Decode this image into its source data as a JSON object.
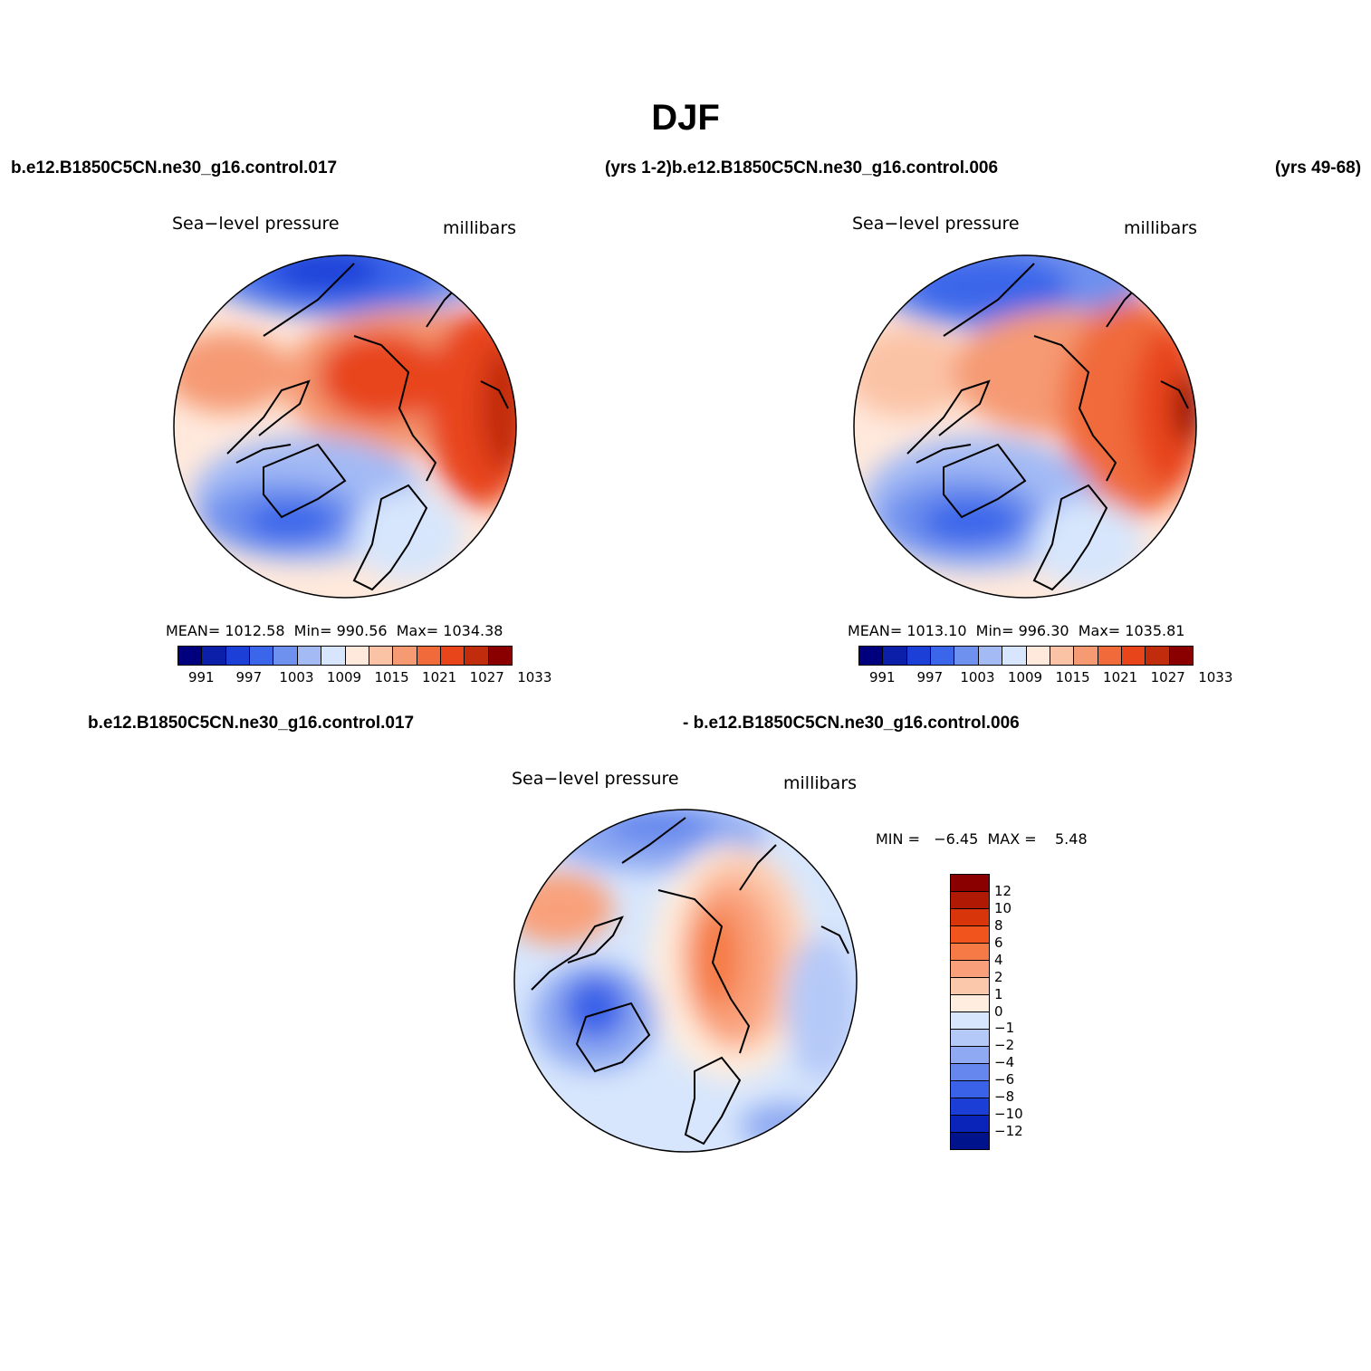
{
  "title": "DJF",
  "header": {
    "case_left": "b.e12.B1850C5CN.ne30_g16.control.017",
    "case_mid": "(yrs 1-2)b.e12.B1850C5CN.ne30_g16.control.006",
    "case_right": "(yrs 49-68)"
  },
  "panel1": {
    "variable": "Sea−level pressure",
    "units": "millibars",
    "stats": {
      "mean_label": "MEAN=",
      "mean": "1012.58",
      "min_label": "Min=",
      "min": "990.56",
      "max_label": "Max=",
      "max": "1034.38"
    }
  },
  "panel2": {
    "variable": "Sea−level pressure",
    "units": "millibars",
    "stats": {
      "mean_label": "MEAN=",
      "mean": "1013.10",
      "min_label": "Min=",
      "min": "996.30",
      "max_label": "Max=",
      "max": "1035.81"
    }
  },
  "colorbar_abs": {
    "colors": [
      "#00007f",
      "#0b1fa8",
      "#1c3fd8",
      "#3b66ea",
      "#6e90ee",
      "#a3baf5",
      "#d7e6fc",
      "#ffe9dc",
      "#fbc3a6",
      "#f59a73",
      "#f06a3a",
      "#e8451a",
      "#c12c0c",
      "#8a0000"
    ],
    "labels": [
      "991",
      "997",
      "1003",
      "1009",
      "1015",
      "1021",
      "1027",
      "1033"
    ]
  },
  "diff_header": {
    "case_left": "b.e12.B1850C5CN.ne30_g16.control.017",
    "case_right": "- b.e12.B1850C5CN.ne30_g16.control.006"
  },
  "panel3": {
    "variable": "Sea−level pressure",
    "units": "millibars",
    "minmax": "MIN =   −6.45  MAX =    5.48"
  },
  "colorbar_diff": {
    "colors": [
      "#8a0000",
      "#b01a04",
      "#d8360a",
      "#f2541e",
      "#f57a45",
      "#f9a07a",
      "#fcc8ab",
      "#ffeedf",
      "#d7e6fc",
      "#b5c9f8",
      "#8faaf2",
      "#6688ee",
      "#3a62e8",
      "#1b3ed6",
      "#0a23b8",
      "#00138c"
    ],
    "labels": [
      "12",
      "10",
      "8",
      "6",
      "4",
      "2",
      "1",
      "0",
      "−1",
      "−2",
      "−4",
      "−6",
      "−8",
      "−10",
      "−12"
    ]
  }
}
